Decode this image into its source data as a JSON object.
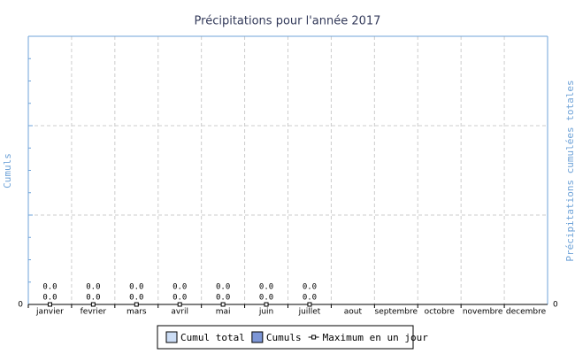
{
  "chart_data": {
    "type": "bar",
    "title": "Précipitations pour l'année 2017",
    "y_label": "Cumuls",
    "y2_label": "Précipitations cumulées totales",
    "categories": [
      "janvier",
      "fevrier",
      "mars",
      "avril",
      "mai",
      "juin",
      "juillet",
      "aout",
      "septembre",
      "octobre",
      "novembre",
      "decembre"
    ],
    "series": [
      {
        "name": "Cumul total",
        "color": "#ccddf5",
        "axis": "y2",
        "values": [
          0,
          0,
          0,
          0,
          0,
          0,
          0,
          null,
          null,
          null,
          null,
          null
        ],
        "value_labels": [
          "0.0",
          "0.0",
          "0.0",
          "0.0",
          "0.0",
          "0.0",
          "0.0",
          null,
          null,
          null,
          null,
          null
        ]
      },
      {
        "name": "Cumuls",
        "color": "#7d96d6",
        "values": [
          0,
          0,
          0,
          0,
          0,
          0,
          0,
          null,
          null,
          null,
          null,
          null
        ],
        "value_labels": [
          "0.0",
          "0.0",
          "0.0",
          "0.0",
          "0.0",
          "0.0",
          "0.0",
          null,
          null,
          null,
          null,
          null
        ]
      },
      {
        "name": "Maximum en un jour",
        "color": "#000000",
        "type": "line",
        "values": [
          0,
          0,
          0,
          0,
          0,
          0,
          0,
          null,
          null,
          null,
          null,
          null
        ]
      }
    ],
    "ylim": [
      0,
      3
    ],
    "yticks": [
      0,
      {
        "value": 1,
        "label": null
      },
      {
        "value": 2,
        "label": null
      },
      {
        "value": 3,
        "label": null
      }
    ],
    "y2lim": [
      0,
      3
    ],
    "y2ticks": [
      0
    ],
    "grid": true,
    "legend": "bottom"
  }
}
